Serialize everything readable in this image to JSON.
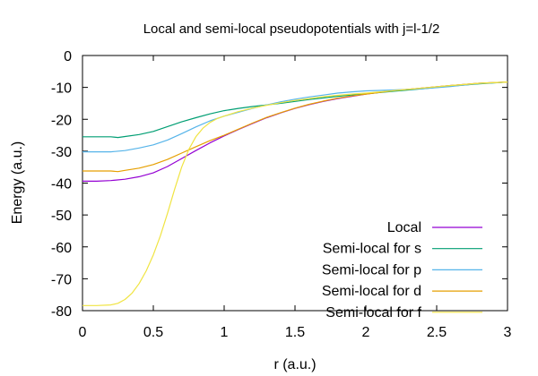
{
  "chart_data": {
    "type": "line",
    "title": "Local and semi-local pseudopotentials with j=l-1/2",
    "xlabel": "r (a.u.)",
    "ylabel": "Energy (a.u.)",
    "xlim": [
      0,
      3
    ],
    "ylim": [
      -80,
      0
    ],
    "xticks": [
      0,
      0.5,
      1,
      1.5,
      2,
      2.5,
      3
    ],
    "xtick_labels": [
      "0",
      "0.5",
      "1",
      "1.5",
      "2",
      "2.5",
      "3"
    ],
    "yticks": [
      0,
      -10,
      -20,
      -30,
      -40,
      -50,
      -60,
      -70,
      -80
    ],
    "ytick_labels": [
      "0",
      "-10",
      "-20",
      "-30",
      "-40",
      "-50",
      "-60",
      "-70",
      "-80"
    ],
    "grid": false,
    "legend_position": "bottom-right",
    "series": [
      {
        "name": "Local",
        "color": "#9400d3",
        "points": [
          [
            0,
            -39.4
          ],
          [
            0.1,
            -39.4
          ],
          [
            0.2,
            -39.2
          ],
          [
            0.3,
            -38.8
          ],
          [
            0.4,
            -38
          ],
          [
            0.5,
            -36.8
          ],
          [
            0.6,
            -34.8
          ],
          [
            0.7,
            -32.3
          ],
          [
            0.8,
            -29.8
          ],
          [
            0.9,
            -27.4
          ],
          [
            1.0,
            -25.2
          ],
          [
            1.1,
            -23.2
          ],
          [
            1.2,
            -21.3
          ],
          [
            1.3,
            -19.5
          ],
          [
            1.4,
            -18
          ],
          [
            1.5,
            -16.6
          ],
          [
            1.6,
            -15.4
          ],
          [
            1.7,
            -14.4
          ],
          [
            1.8,
            -13.5
          ],
          [
            1.9,
            -12.8
          ],
          [
            2.0,
            -12.1
          ],
          [
            2.2,
            -11
          ],
          [
            2.4,
            -10.2
          ],
          [
            2.6,
            -9.4
          ],
          [
            2.8,
            -8.7
          ],
          [
            3.0,
            -8.3
          ]
        ]
      },
      {
        "name": "Semi-local for s",
        "color": "#009e73",
        "points": [
          [
            0,
            -25.5
          ],
          [
            0.1,
            -25.5
          ],
          [
            0.2,
            -25.5
          ],
          [
            0.25,
            -25.7
          ],
          [
            0.3,
            -25.4
          ],
          [
            0.4,
            -24.8
          ],
          [
            0.5,
            -23.8
          ],
          [
            0.6,
            -22.3
          ],
          [
            0.7,
            -20.8
          ],
          [
            0.8,
            -19.5
          ],
          [
            0.9,
            -18.3
          ],
          [
            1.0,
            -17.3
          ],
          [
            1.1,
            -16.6
          ],
          [
            1.2,
            -16
          ],
          [
            1.3,
            -15.5
          ],
          [
            1.4,
            -15
          ],
          [
            1.5,
            -14.4
          ],
          [
            1.6,
            -13.8
          ],
          [
            1.7,
            -13.3
          ],
          [
            1.8,
            -12.8
          ],
          [
            1.9,
            -12.4
          ],
          [
            2.0,
            -12
          ],
          [
            2.2,
            -11.2
          ],
          [
            2.4,
            -10.4
          ],
          [
            2.6,
            -9.6
          ],
          [
            2.8,
            -8.9
          ],
          [
            3.0,
            -8.3
          ]
        ]
      },
      {
        "name": "Semi-local for p",
        "color": "#56b4e9",
        "points": [
          [
            0,
            -30.2
          ],
          [
            0.1,
            -30.2
          ],
          [
            0.2,
            -30.2
          ],
          [
            0.3,
            -29.8
          ],
          [
            0.4,
            -29
          ],
          [
            0.5,
            -28
          ],
          [
            0.6,
            -26.5
          ],
          [
            0.7,
            -24.5
          ],
          [
            0.8,
            -22.4
          ],
          [
            0.9,
            -20.5
          ],
          [
            1.0,
            -19
          ],
          [
            1.1,
            -17.8
          ],
          [
            1.2,
            -16.6
          ],
          [
            1.3,
            -15.5
          ],
          [
            1.4,
            -14.5
          ],
          [
            1.5,
            -13.7
          ],
          [
            1.6,
            -13
          ],
          [
            1.7,
            -12.4
          ],
          [
            1.8,
            -11.8
          ],
          [
            1.9,
            -11.4
          ],
          [
            2.0,
            -11.1
          ],
          [
            2.2,
            -10.8
          ],
          [
            2.4,
            -10.4
          ],
          [
            2.6,
            -9.7
          ],
          [
            2.8,
            -8.8
          ],
          [
            3.0,
            -8.3
          ]
        ]
      },
      {
        "name": "Semi-local for d",
        "color": "#e69f00",
        "points": [
          [
            0,
            -36.2
          ],
          [
            0.1,
            -36.2
          ],
          [
            0.2,
            -36.2
          ],
          [
            0.25,
            -36.4
          ],
          [
            0.3,
            -36
          ],
          [
            0.4,
            -35.3
          ],
          [
            0.5,
            -34.2
          ],
          [
            0.6,
            -32.6
          ],
          [
            0.7,
            -30.6
          ],
          [
            0.8,
            -28.6
          ],
          [
            0.9,
            -26.7
          ],
          [
            1.0,
            -25
          ],
          [
            1.1,
            -23.1
          ],
          [
            1.2,
            -21.2
          ],
          [
            1.3,
            -19.4
          ],
          [
            1.4,
            -17.9
          ],
          [
            1.5,
            -16.5
          ],
          [
            1.6,
            -15.3
          ],
          [
            1.7,
            -14.3
          ],
          [
            1.8,
            -13.4
          ],
          [
            1.9,
            -12.7
          ],
          [
            2.0,
            -12.1
          ],
          [
            2.2,
            -11
          ],
          [
            2.4,
            -10.2
          ],
          [
            2.6,
            -9.4
          ],
          [
            2.8,
            -8.7
          ],
          [
            3.0,
            -8.3
          ]
        ]
      },
      {
        "name": "Semi-local for f",
        "color": "#f0e442",
        "points": [
          [
            0,
            -78.4
          ],
          [
            0.1,
            -78.4
          ],
          [
            0.2,
            -78.2
          ],
          [
            0.25,
            -77.7
          ],
          [
            0.3,
            -76.5
          ],
          [
            0.35,
            -74.5
          ],
          [
            0.4,
            -71.5
          ],
          [
            0.45,
            -67.5
          ],
          [
            0.5,
            -62.5
          ],
          [
            0.55,
            -56.5
          ],
          [
            0.6,
            -49.5
          ],
          [
            0.65,
            -42
          ],
          [
            0.7,
            -35
          ],
          [
            0.75,
            -29.5
          ],
          [
            0.8,
            -25.5
          ],
          [
            0.85,
            -22.8
          ],
          [
            0.9,
            -21
          ],
          [
            0.95,
            -19.8
          ],
          [
            1.0,
            -19
          ],
          [
            1.1,
            -17.6
          ],
          [
            1.2,
            -16.5
          ],
          [
            1.3,
            -15.6
          ],
          [
            1.4,
            -14.8
          ],
          [
            1.5,
            -14.1
          ],
          [
            1.6,
            -13.5
          ],
          [
            1.7,
            -12.9
          ],
          [
            1.8,
            -12.5
          ],
          [
            1.9,
            -12.1
          ],
          [
            2.0,
            -11.8
          ],
          [
            2.2,
            -11
          ],
          [
            2.4,
            -10.2
          ],
          [
            2.6,
            -9.4
          ],
          [
            2.8,
            -8.7
          ],
          [
            3.0,
            -8.3
          ]
        ]
      }
    ]
  }
}
